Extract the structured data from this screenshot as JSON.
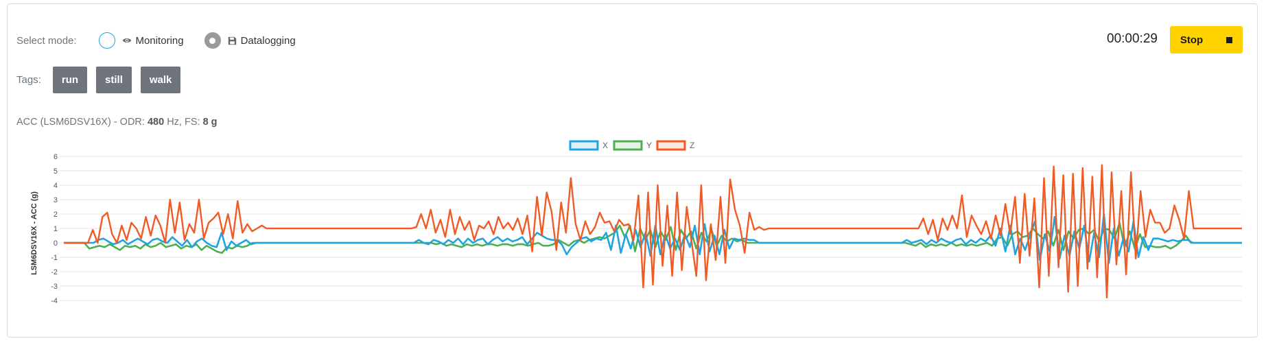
{
  "mode": {
    "label": "Select mode:",
    "options": [
      {
        "label": "Monitoring",
        "icon": "eye-icon",
        "selected": false
      },
      {
        "label": "Datalogging",
        "icon": "floppy-disk-icon",
        "selected": true
      }
    ]
  },
  "tags": {
    "label": "Tags:",
    "items": [
      "run",
      "still",
      "walk"
    ]
  },
  "timer": "00:00:29",
  "stop_button": {
    "label": "Stop",
    "icon": "stop-square-icon"
  },
  "sensor": {
    "prefix": "ACC (LSM6DSV16X) - ODR: ",
    "odr": "480",
    "mid": " Hz, FS: ",
    "fs": "8 g"
  },
  "colors": {
    "x": "#1ea4e0",
    "y": "#4caf50",
    "z": "#f15a24",
    "accent": "#ffd200"
  },
  "chart_data": {
    "type": "line",
    "ylabel": "LSM6DSV16X - ACC (g)",
    "ylim": [
      -4,
      6
    ],
    "yticks": [
      -4,
      -3,
      -2,
      -1,
      0,
      1,
      2,
      3,
      4,
      5,
      6
    ],
    "grid": true,
    "legend_position": "top-center",
    "series": [
      {
        "name": "X",
        "values": [
          0,
          0,
          0,
          0,
          0,
          0,
          0,
          0.2,
          0.3,
          0.1,
          -0.1,
          0,
          0.2,
          -0.1,
          0.1,
          0.3,
          0.1,
          -0.1,
          0.2,
          0.3,
          0.1,
          0,
          0.4,
          0.1,
          -0.2,
          0.2,
          -0.3,
          0.1,
          0.3,
          0,
          -0.2,
          -0.3,
          0.7,
          -0.5,
          0.1,
          -0.2,
          0,
          0.2,
          -0.1,
          0,
          0,
          0,
          0,
          0,
          0,
          0,
          0,
          0,
          0,
          0,
          0,
          0,
          0,
          0,
          0,
          0,
          0,
          0,
          0,
          0,
          0,
          0,
          0,
          0,
          0,
          0,
          0,
          0,
          0,
          0,
          0,
          0,
          0.2,
          0,
          -0.1,
          0.2,
          0.1,
          -0.1,
          0.2,
          0,
          0.3,
          -0.1,
          0.3,
          0,
          0.2,
          0.3,
          -0.1,
          0.2,
          0.4,
          0.1,
          0.3,
          0.1,
          0.2,
          0.4,
          -0.1,
          0.3,
          0.7,
          0.5,
          0.3,
          0.2,
          0.2,
          -0.1,
          -0.8,
          -0.3,
          0,
          0.3,
          0.4,
          0.1,
          0.3,
          0.2,
          0.7,
          -0.5,
          1.2,
          -0.7,
          0.6,
          -0.4,
          0.9,
          -0.3,
          0.7,
          -0.9,
          1.2,
          -0.8,
          0.6,
          -0.4,
          0.3,
          -0.5,
          0.6,
          -0.3,
          1.2,
          -0.8,
          1.3,
          -0.6,
          0.5,
          -0.8,
          0.9,
          -0.4,
          0.3,
          0.2,
          0.3,
          0.2,
          0.2,
          0,
          0,
          0,
          0,
          0,
          0,
          0,
          0,
          0,
          0,
          0,
          0,
          0,
          0,
          0,
          0,
          0,
          0,
          0,
          0,
          0,
          0,
          0,
          0,
          0,
          0,
          0,
          0,
          0,
          0,
          0.2,
          0,
          0.1,
          0.2,
          -0.1,
          0.2,
          0,
          0.3,
          0.1,
          0,
          0.2,
          0.3,
          -0.1,
          0.2,
          0,
          0.3,
          0.1,
          0.5,
          -0.2,
          1,
          -0.6,
          1.2,
          -0.8,
          0.3,
          -0.5,
          0.5,
          1.5,
          -1.2,
          0.6,
          -0.6,
          1.8,
          -1.1,
          0.5,
          -0.9,
          0.8,
          -0.4,
          1.2,
          -1.3,
          0.7,
          -1,
          2,
          -1.4,
          1,
          -0.9,
          0.4,
          -0.6,
          1.5,
          -1,
          0.4,
          -0.5,
          0.3,
          0.3,
          0.2,
          0.1,
          0.2,
          0.1,
          0.2,
          0.2,
          0,
          0,
          0,
          0,
          0,
          0,
          0,
          0,
          0,
          0,
          0
        ]
      },
      {
        "name": "Y",
        "values": [
          0,
          0,
          0,
          0,
          0,
          -0.4,
          -0.3,
          -0.2,
          -0.3,
          -0.1,
          -0.3,
          -0.5,
          -0.2,
          -0.3,
          -0.2,
          -0.4,
          -0.1,
          -0.3,
          -0.2,
          0,
          -0.3,
          -0.2,
          -0.1,
          -0.4,
          -0.2,
          -0.3,
          -0.1,
          -0.5,
          -0.2,
          -0.4,
          -0.6,
          -0.7,
          -0.3,
          -0.4,
          -0.2,
          -0.3,
          -0.2,
          0,
          0,
          0,
          0,
          0,
          0,
          0,
          0,
          0,
          0,
          0,
          0,
          0,
          0,
          0,
          0,
          0,
          0,
          0,
          0,
          0,
          0,
          0,
          0,
          0,
          0,
          0,
          0,
          0,
          0,
          0,
          0,
          0,
          0,
          0,
          0,
          -0.1,
          0,
          -0.2,
          -0.1,
          -0.2,
          -0.3,
          -0.1,
          -0.2,
          -0.1,
          -0.2,
          -0.1,
          -0.1,
          -0.2,
          -0.1,
          -0.1,
          -0.2,
          -0.1,
          -0.1,
          -0.2,
          -0.1,
          0,
          -0.2,
          -0.2,
          -0.1,
          0.2,
          0,
          -0.2,
          0.1,
          0.2,
          0,
          0.2,
          0.3,
          0.4,
          0.3,
          0.5,
          0.7,
          1.2,
          0.4,
          1.2,
          -0.6,
          1,
          0.2,
          0.9,
          -0.3,
          0.8,
          0.2,
          1.1,
          -0.5,
          0.9,
          0.3,
          0.8,
          -0.4,
          0.7,
          0.1,
          0.9,
          -0.2,
          0.5,
          0.1,
          0.3,
          0.1,
          0.2,
          0,
          0,
          0,
          0,
          0,
          0,
          0,
          0,
          0,
          0,
          0,
          0,
          0,
          0,
          0,
          0,
          0,
          0,
          0,
          0,
          0,
          0,
          0,
          0,
          0,
          0,
          0,
          0,
          0,
          0,
          0,
          0,
          -0.1,
          -0.2,
          0,
          -0.3,
          -0.1,
          -0.2,
          -0.1,
          -0.2,
          0,
          -0.2,
          -0.1,
          -0.2,
          -0.1,
          -0.2,
          -0.1,
          0,
          -0.2,
          0.3,
          0.4,
          -0.2,
          0.6,
          0.8,
          0.4,
          0.5,
          1,
          0.6,
          0.3,
          0.8,
          -0.2,
          0.9,
          -0.5,
          0.8,
          0.3,
          0.9,
          1,
          0.6,
          0.9,
          0.1,
          1,
          0.9,
          0.3,
          1.4,
          -0.3,
          0.8,
          -0.4,
          0.6,
          -0.3,
          -0.2,
          -0.3,
          -0.3,
          -0.2,
          -0.4,
          -0.2,
          0.1,
          0.5,
          0,
          0,
          0,
          0,
          0,
          0,
          0,
          0,
          0,
          0,
          0
        ]
      },
      {
        "name": "Z",
        "values": [
          0,
          0,
          0,
          0,
          0,
          0,
          0.9,
          0,
          1.8,
          2.1,
          0.6,
          0,
          1.2,
          0.2,
          1.4,
          1,
          0.3,
          1.8,
          0.5,
          1.9,
          1.2,
          0,
          3,
          0.7,
          2.8,
          0.2,
          1.3,
          0.7,
          3,
          0.3,
          1.4,
          1.7,
          2.1,
          0.6,
          2,
          0.3,
          2.9,
          0.7,
          1.3,
          0.8,
          1,
          1.2,
          1,
          1,
          1,
          1,
          1,
          1,
          1,
          1,
          1,
          1,
          1,
          1,
          1,
          1,
          1,
          1,
          1,
          1,
          1,
          1,
          1,
          1,
          1,
          1,
          1,
          1,
          1,
          1,
          1,
          1,
          1,
          1.1,
          2,
          1,
          2.3,
          0.7,
          1.6,
          0.4,
          2.3,
          0.6,
          1.8,
          0.9,
          1.5,
          0.2,
          1.2,
          1,
          1.5,
          0.6,
          1.8,
          1,
          1.4,
          0.9,
          1.7,
          0.6,
          1.9,
          -0.6,
          3.2,
          0.5,
          3.5,
          2.2,
          -0.5,
          2.8,
          0.7,
          4.5,
          1.3,
          0.2,
          1.5,
          0.6,
          1.1,
          2.1,
          1.4,
          1.5,
          0.8,
          1.6,
          1.2,
          1.3,
          0.2,
          3.3,
          -3.1,
          3.5,
          -2.9,
          4,
          -1.6,
          2.6,
          -2.3,
          3.5,
          -1.9,
          2.5,
          0.1,
          -2.3,
          4,
          -2.6,
          1.3,
          -1.2,
          3.2,
          -1.4,
          4.4,
          2.3,
          1.2,
          -0.7,
          2.1,
          0.9,
          1.1,
          0.9,
          1,
          1,
          1,
          1,
          1,
          1,
          1,
          1,
          1,
          1,
          1,
          1,
          1,
          1,
          1,
          1,
          1,
          1,
          1,
          1,
          1,
          1,
          1,
          1,
          1,
          1,
          1,
          1,
          1,
          1,
          1,
          1,
          1.7,
          0.6,
          1.6,
          0.2,
          1.7,
          0.9,
          1.9,
          1,
          3.3,
          0.4,
          1.9,
          1.2,
          0.6,
          1.5,
          0.3,
          1.9,
          0.5,
          2.7,
          0.6,
          3.2,
          -1.4,
          3.4,
          -0.9,
          3.1,
          -3.1,
          4.5,
          -2.3,
          5.3,
          -1.7,
          4.7,
          -3.4,
          4.8,
          -3,
          5.2,
          -1.8,
          4.6,
          -2.4,
          5.4,
          -3.8,
          4.9,
          -1.5,
          3.6,
          -2.2,
          4.9,
          -1.1,
          3.6,
          0.4,
          2.3,
          1.4,
          1.4,
          0.7,
          1,
          2.6,
          1.6,
          0.3,
          3.6,
          1,
          1,
          1,
          1,
          1,
          1,
          1,
          1,
          1,
          1,
          1
        ]
      }
    ]
  }
}
